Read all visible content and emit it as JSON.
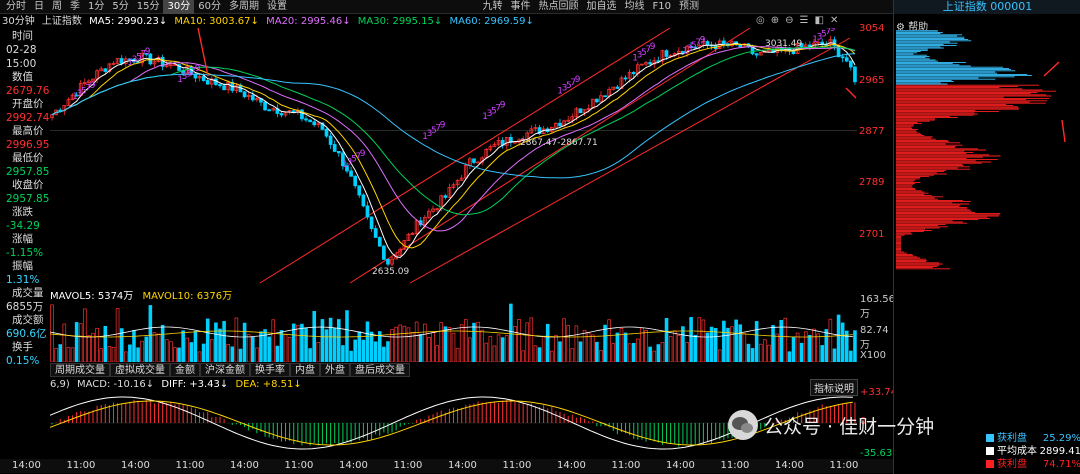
{
  "toolbar": {
    "periods": [
      "分时",
      "日",
      "周",
      "季",
      "1分",
      "5分",
      "15分",
      "30分",
      "60分",
      "多周期",
      "设置"
    ],
    "active_period": "30分",
    "right_tools": [
      "九转",
      "事件",
      "热点回顾",
      "加自选",
      "均线",
      "F10",
      "预测"
    ],
    "chart_icons": [
      "◎",
      "⊕",
      "⊖",
      "☰",
      "◧",
      "✕"
    ]
  },
  "legend": {
    "period_name": "30分钟",
    "index_name": "上证指数",
    "ma5": "MA5: 2990.23↓",
    "ma10": "MA10: 3003.67↓",
    "ma20": "MA20: 2995.46↓",
    "ma30": "MA30: 2995.15↓",
    "ma60": "MA60: 2969.59↓"
  },
  "info": {
    "time_label": "时间",
    "date": "02-28",
    "clock": "15:00",
    "value_label": "数值",
    "value": "2679.76",
    "open_label": "开盘价",
    "open": "2992.74",
    "high_label": "最高价",
    "high": "2996.95",
    "low_label": "最低价",
    "low": "2957.85",
    "close_label": "收盘价",
    "close": "2957.85",
    "change_label": "涨跌",
    "change": "-34.29",
    "pct_label": "涨幅",
    "pct": "-1.15%",
    "amp_label": "振幅",
    "amp": "1.31%",
    "vol_label": "成交量",
    "vol": "6855万",
    "amount_label": "成交额",
    "amount": "690.6亿",
    "turnover_label": "换手",
    "turnover": "0.15%"
  },
  "price_axis": [
    "3054",
    "2965",
    "2877",
    "2789",
    "2701"
  ],
  "annotations": {
    "high_mark": "3031.49",
    "low_mark": "2635.09",
    "mid_mark": "2867.47-2867.71"
  },
  "volume": {
    "mavol5": "MAVOL5: 5374万",
    "mavol10": "MAVOL10: 6376万",
    "axis": [
      "163.56万",
      "82.74万",
      "X100"
    ]
  },
  "sub_tabs": [
    "周期成交量",
    "虚拟成交量",
    "金额",
    "沪深金额",
    "换手率",
    "内盘",
    "外盘",
    "盘后成交量"
  ],
  "macd": {
    "params": "6,9)",
    "macd": "MACD: -10.16↓",
    "diff": "DIFF: +3.43↓",
    "dea": "DEA: +8.51↓",
    "button": "指标说明",
    "axis": [
      "+33.74",
      "0",
      "-35.63"
    ]
  },
  "time_axis": [
    "14:00",
    "11:00",
    "14:00",
    "11:00",
    "14:00",
    "11:00",
    "14:00",
    "11:00",
    "14:00",
    "11:00",
    "14:00",
    "11:00",
    "14:00",
    "11:00",
    "14:00",
    "11:00"
  ],
  "right_panel": {
    "title": "上证指数 000001",
    "help": "帮助",
    "legend": [
      {
        "label": "获利盘",
        "value": "25.29%",
        "color": "#37c3ff"
      },
      {
        "label": "平均成本",
        "value": "2899.41",
        "color": "#ffffff"
      },
      {
        "label": "获利盘",
        "value": "74.71%",
        "color": "#ff2020"
      }
    ]
  },
  "watermark": "公众号 · 佳财一分钟",
  "colors": {
    "up": "#ff3030",
    "down": "#00d0ff",
    "ma5": "#ffffff",
    "ma10": "#ffd400",
    "ma20": "#e070ff",
    "ma30": "#00d35a",
    "ma60": "#37c3ff"
  }
}
